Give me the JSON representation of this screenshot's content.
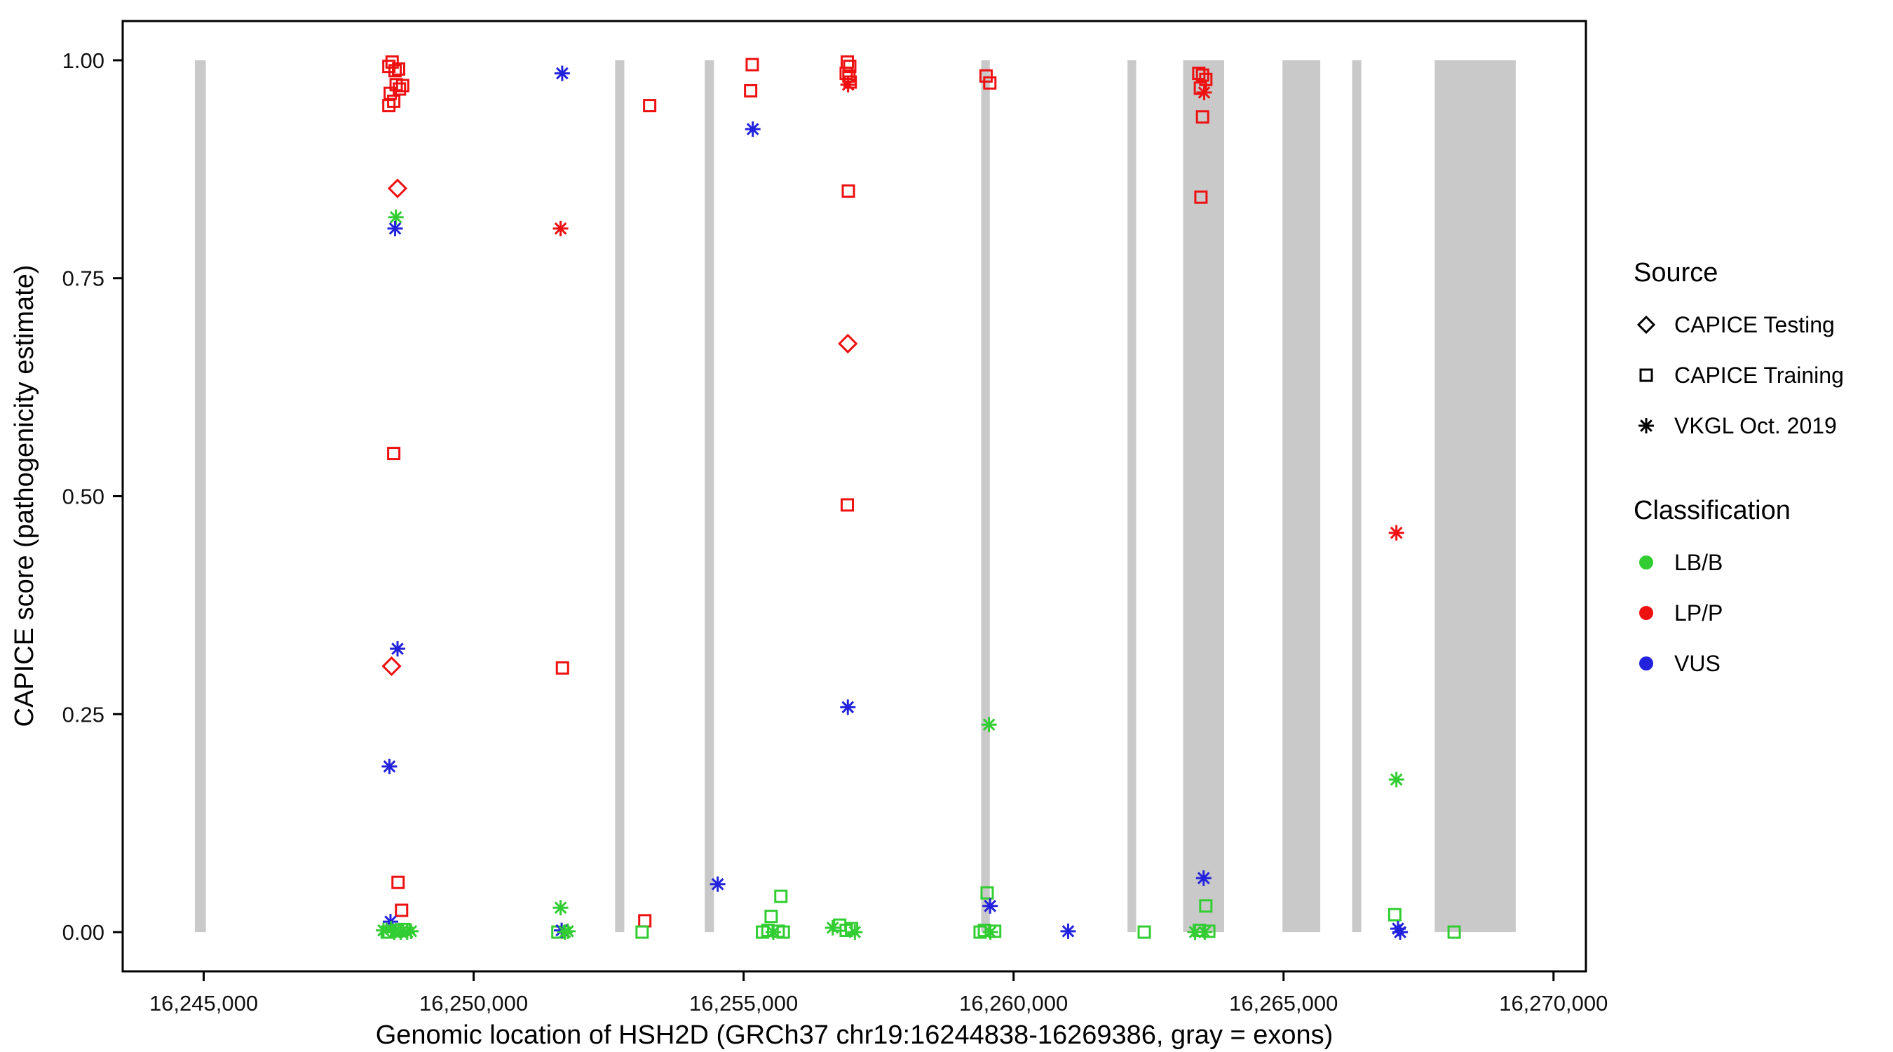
{
  "legend": {
    "source": {
      "title": "Source",
      "items": [
        {
          "label": "CAPICE Testing",
          "shape": "diamond"
        },
        {
          "label": "CAPICE Training",
          "shape": "square"
        },
        {
          "label": "VKGL Oct. 2019",
          "shape": "asterisk"
        }
      ]
    },
    "classification": {
      "title": "Classification",
      "items": [
        {
          "label": "LB/B",
          "color": "#32CD32"
        },
        {
          "label": "LP/P",
          "color": "#EE1111"
        },
        {
          "label": "VUS",
          "color": "#2222DD"
        }
      ]
    }
  },
  "chart_data": {
    "type": "scatter",
    "title": "",
    "xlabel": "Genomic location of HSH2D (GRCh37 chr19:16244838-16269386, gray = exons)",
    "ylabel": "CAPICE score (pathogenicity estimate)",
    "xlim": [
      16243500,
      16270600
    ],
    "ylim": [
      -0.045,
      1.045
    ],
    "xticks": [
      16245000,
      16250000,
      16255000,
      16260000,
      16265000,
      16270000
    ],
    "xtick_labels": [
      "16,245,000",
      "16,250,000",
      "16,255,000",
      "16,260,000",
      "16,265,000",
      "16,270,000"
    ],
    "yticks": [
      0,
      0.25,
      0.5,
      0.75,
      1
    ],
    "ytick_labels": [
      "0.00",
      "0.25",
      "0.50",
      "0.75",
      "1.00"
    ],
    "grid": false,
    "legend_position": "right",
    "exon_color": "#C9C9C9",
    "exons": [
      [
        16244838,
        16245040
      ],
      [
        16252620,
        16252790
      ],
      [
        16254280,
        16254450
      ],
      [
        16259400,
        16259560
      ],
      [
        16262110,
        16262270
      ],
      [
        16263140,
        16263900
      ],
      [
        16264980,
        16265680
      ],
      [
        16266270,
        16266440
      ],
      [
        16267800,
        16269300
      ]
    ],
    "source_codes": {
      "D": "CAPICE Testing",
      "T": "CAPICE Training",
      "V": "VKGL Oct. 2019"
    },
    "class_codes": {
      "B": "LB/B",
      "P": "LP/P",
      "U": "VUS"
    },
    "source_shapes": {
      "CAPICE Testing": "diamond",
      "CAPICE Training": "square",
      "VKGL Oct. 2019": "asterisk"
    },
    "classification_colors": {
      "LB/B": "#32CD32",
      "LP/P": "#EE1111",
      "VUS": "#2222DD"
    },
    "points_format": [
      "x",
      "y",
      "source_code",
      "classification_code"
    ],
    "points": [
      [
        16248430,
        0.993,
        "T",
        "P"
      ],
      [
        16248490,
        0.998,
        "T",
        "P"
      ],
      [
        16248545,
        0.988,
        "T",
        "P"
      ],
      [
        16248610,
        0.99,
        "T",
        "P"
      ],
      [
        16248455,
        0.962,
        "T",
        "P"
      ],
      [
        16248520,
        0.953,
        "T",
        "P"
      ],
      [
        16248565,
        0.972,
        "T",
        "P"
      ],
      [
        16248625,
        0.967,
        "T",
        "P"
      ],
      [
        16248685,
        0.971,
        "T",
        "P"
      ],
      [
        16248430,
        0.948,
        "T",
        "P"
      ],
      [
        16248590,
        0.853,
        "D",
        "P"
      ],
      [
        16248560,
        0.82,
        "V",
        "B"
      ],
      [
        16248545,
        0.807,
        "V",
        "U"
      ],
      [
        16248520,
        0.549,
        "T",
        "P"
      ],
      [
        16248590,
        0.325,
        "V",
        "U"
      ],
      [
        16248480,
        0.305,
        "D",
        "P"
      ],
      [
        16248440,
        0.19,
        "V",
        "U"
      ],
      [
        16248600,
        0.057,
        "T",
        "P"
      ],
      [
        16248665,
        0.025,
        "T",
        "P"
      ],
      [
        16248460,
        0.012,
        "V",
        "U"
      ],
      [
        16248330,
        0.002,
        "V",
        "B"
      ],
      [
        16248400,
        0.0,
        "T",
        "B"
      ],
      [
        16248470,
        0.004,
        "V",
        "B"
      ],
      [
        16248530,
        0.0,
        "V",
        "B"
      ],
      [
        16248590,
        0.002,
        "T",
        "B"
      ],
      [
        16248650,
        0.0,
        "V",
        "B"
      ],
      [
        16248710,
        0.003,
        "T",
        "B"
      ],
      [
        16248770,
        0.0,
        "V",
        "B"
      ],
      [
        16248840,
        0.001,
        "V",
        "B"
      ],
      [
        16251640,
        0.985,
        "V",
        "U"
      ],
      [
        16251610,
        0.807,
        "V",
        "P"
      ],
      [
        16251645,
        0.303,
        "T",
        "P"
      ],
      [
        16251610,
        0.028,
        "V",
        "B"
      ],
      [
        16251560,
        0.0,
        "T",
        "B"
      ],
      [
        16251630,
        0.002,
        "V",
        "U"
      ],
      [
        16251690,
        0.0,
        "V",
        "B"
      ],
      [
        16251745,
        0.001,
        "V",
        "B"
      ],
      [
        16253260,
        0.948,
        "T",
        "P"
      ],
      [
        16253170,
        0.013,
        "T",
        "P"
      ],
      [
        16253120,
        0.0,
        "T",
        "B"
      ],
      [
        16255160,
        0.995,
        "T",
        "P"
      ],
      [
        16255130,
        0.965,
        "T",
        "P"
      ],
      [
        16255170,
        0.921,
        "V",
        "U"
      ],
      [
        16254520,
        0.055,
        "V",
        "U"
      ],
      [
        16255690,
        0.041,
        "T",
        "B"
      ],
      [
        16255510,
        0.018,
        "T",
        "B"
      ],
      [
        16255350,
        0.0,
        "T",
        "B"
      ],
      [
        16255450,
        0.002,
        "T",
        "B"
      ],
      [
        16255550,
        0.0,
        "V",
        "B"
      ],
      [
        16255640,
        0.001,
        "T",
        "B"
      ],
      [
        16255735,
        0.0,
        "T",
        "B"
      ],
      [
        16256920,
        0.998,
        "T",
        "P"
      ],
      [
        16256965,
        0.993,
        "T",
        "P"
      ],
      [
        16256900,
        0.985,
        "T",
        "P"
      ],
      [
        16256950,
        0.982,
        "T",
        "P"
      ],
      [
        16256935,
        0.972,
        "V",
        "P"
      ],
      [
        16256975,
        0.975,
        "T",
        "P"
      ],
      [
        16256940,
        0.85,
        "T",
        "P"
      ],
      [
        16256930,
        0.675,
        "D",
        "P"
      ],
      [
        16256920,
        0.49,
        "T",
        "P"
      ],
      [
        16256930,
        0.258,
        "V",
        "U"
      ],
      [
        16256650,
        0.005,
        "V",
        "B"
      ],
      [
        16256780,
        0.008,
        "T",
        "B"
      ],
      [
        16256900,
        0.002,
        "T",
        "B"
      ],
      [
        16257000,
        0.004,
        "T",
        "B"
      ],
      [
        16257060,
        0.0,
        "V",
        "B"
      ],
      [
        16259490,
        0.982,
        "T",
        "P"
      ],
      [
        16259560,
        0.974,
        "T",
        "P"
      ],
      [
        16259545,
        0.238,
        "V",
        "B"
      ],
      [
        16259510,
        0.045,
        "T",
        "B"
      ],
      [
        16259565,
        0.03,
        "V",
        "U"
      ],
      [
        16259380,
        0.0,
        "T",
        "B"
      ],
      [
        16259460,
        0.002,
        "T",
        "B"
      ],
      [
        16259570,
        0.0,
        "V",
        "B"
      ],
      [
        16259650,
        0.001,
        "T",
        "B"
      ],
      [
        16261010,
        0.001,
        "V",
        "U"
      ],
      [
        16262420,
        0.0,
        "T",
        "B"
      ],
      [
        16263430,
        0.985,
        "T",
        "P"
      ],
      [
        16263500,
        0.983,
        "T",
        "P"
      ],
      [
        16263560,
        0.978,
        "T",
        "P"
      ],
      [
        16263460,
        0.968,
        "T",
        "P"
      ],
      [
        16263530,
        0.963,
        "V",
        "P"
      ],
      [
        16263500,
        0.935,
        "T",
        "P"
      ],
      [
        16263470,
        0.843,
        "T",
        "P"
      ],
      [
        16263520,
        0.062,
        "V",
        "U"
      ],
      [
        16263560,
        0.03,
        "T",
        "B"
      ],
      [
        16263360,
        0.0,
        "V",
        "B"
      ],
      [
        16263440,
        0.002,
        "T",
        "B"
      ],
      [
        16263540,
        0.0,
        "V",
        "B"
      ],
      [
        16263615,
        0.001,
        "T",
        "B"
      ],
      [
        16267090,
        0.458,
        "V",
        "P"
      ],
      [
        16267090,
        0.175,
        "V",
        "B"
      ],
      [
        16267060,
        0.02,
        "T",
        "B"
      ],
      [
        16267120,
        0.004,
        "V",
        "U"
      ],
      [
        16267160,
        0.0,
        "V",
        "U"
      ],
      [
        16268160,
        0.0,
        "T",
        "B"
      ]
    ]
  }
}
